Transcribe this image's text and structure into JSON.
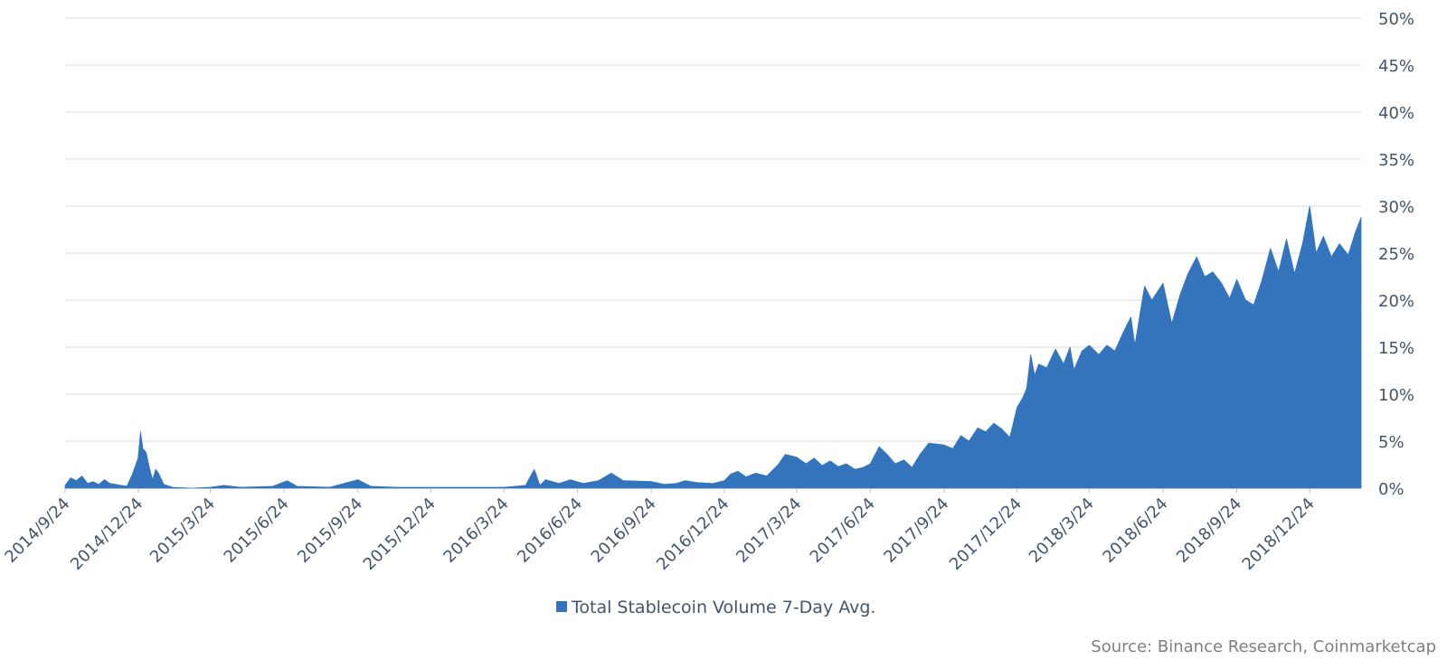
{
  "chart_data": {
    "type": "area",
    "title": "",
    "xlabel": "",
    "ylabel": "",
    "x_ticks": [
      "2014/9/24",
      "2014/12/24",
      "2015/3/24",
      "2015/6/24",
      "2015/9/24",
      "2015/12/24",
      "2016/3/24",
      "2016/6/24",
      "2016/9/24",
      "2016/12/24",
      "2017/3/24",
      "2017/6/24",
      "2017/9/24",
      "2017/12/24",
      "2018/3/24",
      "2018/6/24",
      "2018/9/24",
      "2018/12/24"
    ],
    "x_range": [
      "2014/9/24",
      "2019/2/26"
    ],
    "y_ticks": [
      "0%",
      "5%",
      "10%",
      "15%",
      "20%",
      "25%",
      "30%",
      "35%",
      "40%",
      "45%",
      "50%"
    ],
    "ylim": [
      0,
      50
    ],
    "y_axis_position": "right",
    "grid": true,
    "legend_position": "bottom-center",
    "series": [
      {
        "name": "Total Stablecoin Volume 7-Day Avg.",
        "color": "#3474bd",
        "points": [
          [
            "2014/9/24",
            0.3
          ],
          [
            "2014/10/1",
            1.1
          ],
          [
            "2014/10/8",
            0.8
          ],
          [
            "2014/10/15",
            1.3
          ],
          [
            "2014/10/22",
            0.5
          ],
          [
            "2014/10/29",
            0.7
          ],
          [
            "2014/11/5",
            0.4
          ],
          [
            "2014/11/12",
            0.9
          ],
          [
            "2014/11/19",
            0.5
          ],
          [
            "2014/11/26",
            0.4
          ],
          [
            "2014/12/3",
            0.3
          ],
          [
            "2014/12/10",
            0.2
          ],
          [
            "2014/12/17",
            1.5
          ],
          [
            "2014/12/24",
            3.2
          ],
          [
            "2014/12/27",
            6.0
          ],
          [
            "2014/12/30",
            4.2
          ],
          [
            "2015/1/3",
            3.8
          ],
          [
            "2015/1/7",
            2.2
          ],
          [
            "2015/1/11",
            0.9
          ],
          [
            "2015/1/15",
            2.0
          ],
          [
            "2015/1/19",
            1.5
          ],
          [
            "2015/1/25",
            0.4
          ],
          [
            "2015/2/5",
            0.1
          ],
          [
            "2015/3/1",
            0.0
          ],
          [
            "2015/3/24",
            0.1
          ],
          [
            "2015/4/10",
            0.3
          ],
          [
            "2015/5/1",
            0.1
          ],
          [
            "2015/6/10",
            0.2
          ],
          [
            "2015/6/28",
            0.8
          ],
          [
            "2015/7/10",
            0.2
          ],
          [
            "2015/8/20",
            0.1
          ],
          [
            "2015/9/24",
            0.9
          ],
          [
            "2015/10/10",
            0.2
          ],
          [
            "2015/11/10",
            0.1
          ],
          [
            "2015/12/24",
            0.1
          ],
          [
            "2016/2/1",
            0.1
          ],
          [
            "2016/3/24",
            0.1
          ],
          [
            "2016/4/20",
            0.3
          ],
          [
            "2016/5/1",
            2.0
          ],
          [
            "2016/5/8",
            0.3
          ],
          [
            "2016/5/15",
            0.9
          ],
          [
            "2016/6/1",
            0.5
          ],
          [
            "2016/6/15",
            0.9
          ],
          [
            "2016/7/1",
            0.5
          ],
          [
            "2016/7/20",
            0.8
          ],
          [
            "2016/8/5",
            1.6
          ],
          [
            "2016/8/20",
            0.8
          ],
          [
            "2016/9/24",
            0.7
          ],
          [
            "2016/10/10",
            0.4
          ],
          [
            "2016/10/25",
            0.5
          ],
          [
            "2016/11/5",
            0.8
          ],
          [
            "2016/11/20",
            0.6
          ],
          [
            "2016/12/10",
            0.5
          ],
          [
            "2016/12/24",
            0.8
          ],
          [
            "2017/1/1",
            1.5
          ],
          [
            "2017/1/10",
            1.8
          ],
          [
            "2017/1/20",
            1.2
          ],
          [
            "2017/2/1",
            1.6
          ],
          [
            "2017/2/15",
            1.3
          ],
          [
            "2017/3/1",
            2.5
          ],
          [
            "2017/3/10",
            3.6
          ],
          [
            "2017/3/24",
            3.3
          ],
          [
            "2017/4/5",
            2.6
          ],
          [
            "2017/4/15",
            3.2
          ],
          [
            "2017/4/25",
            2.4
          ],
          [
            "2017/5/5",
            2.9
          ],
          [
            "2017/5/15",
            2.3
          ],
          [
            "2017/5/25",
            2.6
          ],
          [
            "2017/6/5",
            2.0
          ],
          [
            "2017/6/15",
            2.2
          ],
          [
            "2017/6/24",
            2.6
          ],
          [
            "2017/7/5",
            4.4
          ],
          [
            "2017/7/15",
            3.6
          ],
          [
            "2017/7/25",
            2.6
          ],
          [
            "2017/8/5",
            3.0
          ],
          [
            "2017/8/15",
            2.2
          ],
          [
            "2017/8/25",
            3.6
          ],
          [
            "2017/9/5",
            4.8
          ],
          [
            "2017/9/24",
            4.6
          ],
          [
            "2017/10/5",
            4.2
          ],
          [
            "2017/10/15",
            5.6
          ],
          [
            "2017/10/25",
            5.0
          ],
          [
            "2017/11/5",
            6.4
          ],
          [
            "2017/11/15",
            6.0
          ],
          [
            "2017/11/25",
            6.9
          ],
          [
            "2017/12/5",
            6.3
          ],
          [
            "2017/12/15",
            5.4
          ],
          [
            "2017/12/24",
            8.6
          ],
          [
            "2017/12/31",
            9.6
          ],
          [
            "2018/1/5",
            10.6
          ],
          [
            "2018/1/10",
            14.2
          ],
          [
            "2018/1/15",
            12.0
          ],
          [
            "2018/1/20",
            13.2
          ],
          [
            "2018/1/30",
            12.8
          ],
          [
            "2018/2/10",
            14.8
          ],
          [
            "2018/2/20",
            13.2
          ],
          [
            "2018/2/28",
            15.0
          ],
          [
            "2018/3/5",
            12.6
          ],
          [
            "2018/3/15",
            14.6
          ],
          [
            "2018/3/24",
            15.2
          ],
          [
            "2018/4/5",
            14.2
          ],
          [
            "2018/4/15",
            15.2
          ],
          [
            "2018/4/25",
            14.6
          ],
          [
            "2018/5/5",
            16.5
          ],
          [
            "2018/5/15",
            18.2
          ],
          [
            "2018/5/20",
            15.2
          ],
          [
            "2018/6/1",
            21.5
          ],
          [
            "2018/6/10",
            20.0
          ],
          [
            "2018/6/24",
            21.8
          ],
          [
            "2018/7/5",
            17.5
          ],
          [
            "2018/7/15",
            20.5
          ],
          [
            "2018/7/25",
            22.8
          ],
          [
            "2018/8/5",
            24.6
          ],
          [
            "2018/8/15",
            22.5
          ],
          [
            "2018/8/25",
            23.0
          ],
          [
            "2018/9/5",
            21.8
          ],
          [
            "2018/9/15",
            20.2
          ],
          [
            "2018/9/24",
            22.2
          ],
          [
            "2018/10/5",
            20.0
          ],
          [
            "2018/10/15",
            19.5
          ],
          [
            "2018/10/25",
            22.0
          ],
          [
            "2018/11/5",
            25.5
          ],
          [
            "2018/11/15",
            23.0
          ],
          [
            "2018/11/25",
            26.5
          ],
          [
            "2018/12/5",
            22.8
          ],
          [
            "2018/12/15",
            26.0
          ],
          [
            "2018/12/24",
            30.0
          ],
          [
            "2019/1/1",
            25.0
          ],
          [
            "2019/1/10",
            26.8
          ],
          [
            "2019/1/20",
            24.6
          ],
          [
            "2019/1/30",
            26.0
          ],
          [
            "2019/2/10",
            24.8
          ],
          [
            "2019/2/18",
            27.0
          ],
          [
            "2019/2/26",
            28.8
          ]
        ]
      }
    ]
  },
  "source_text": "Source: Binance Research, Coinmarketcap"
}
